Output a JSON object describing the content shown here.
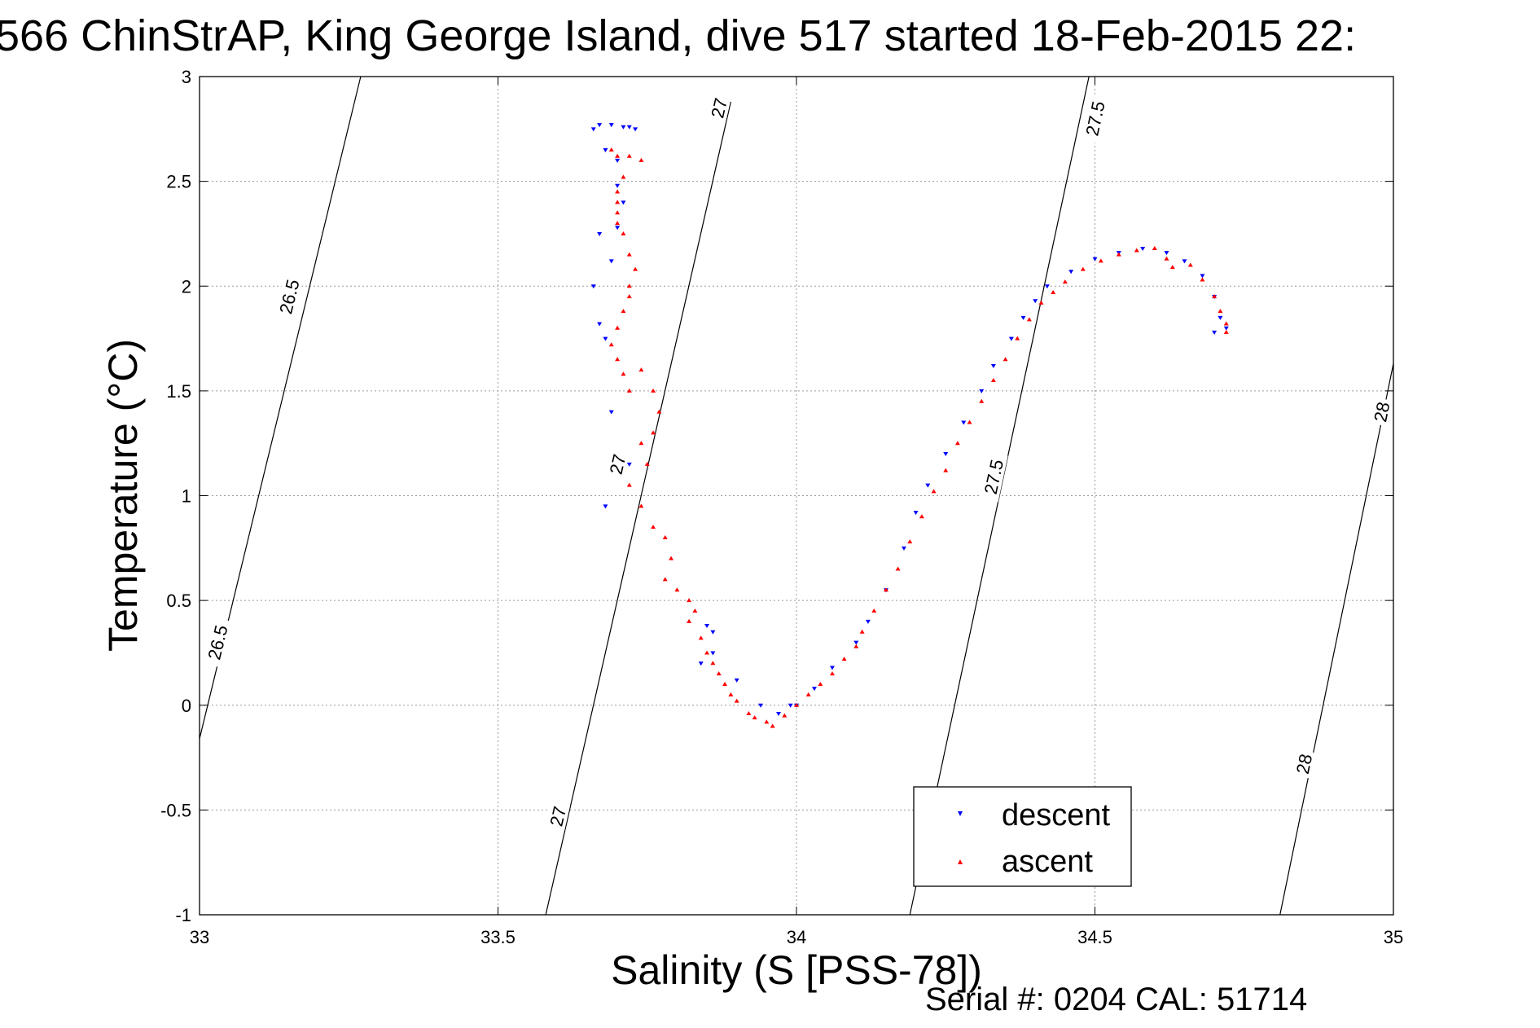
{
  "chart_data": {
    "type": "scatter",
    "title": "566 ChinStrAP, King George Island, dive 517 started 18-Feb-2015 22:",
    "xlabel": "Salinity (S [PSS-78])",
    "ylabel": "Temperature (°C)",
    "xlim": [
      33,
      35
    ],
    "ylim": [
      -1,
      3
    ],
    "x_ticks": [
      "33",
      "33.5",
      "34",
      "34.5",
      "35"
    ],
    "y_ticks": [
      "3",
      "2.5",
      "2",
      "1.5",
      "1",
      "0.5",
      "0",
      "-0.5",
      "-1"
    ],
    "grid": true,
    "legend_position": "bottom-right",
    "footer": "Serial #: 0204  CAL: 51714",
    "density_contours": [
      {
        "label": "26.5",
        "points": [
          [
            33.0,
            -0.16
          ],
          [
            33.27,
            3.0
          ]
        ]
      },
      {
        "label": "27",
        "points": [
          [
            33.58,
            -1.0
          ],
          [
            33.89,
            2.88
          ]
        ]
      },
      {
        "label": "27.5",
        "points": [
          [
            34.19,
            -1.0
          ],
          [
            34.49,
            3.0
          ]
        ]
      },
      {
        "label": "28",
        "points": [
          [
            34.81,
            -1.0
          ],
          [
            35.0,
            1.63
          ]
        ]
      }
    ],
    "contour_labels": [
      {
        "text": "26.5",
        "x": 33.15,
        "y": 1.95
      },
      {
        "text": "26.5",
        "x": 33.03,
        "y": 0.3
      },
      {
        "text": "27",
        "x": 33.87,
        "y": 2.85
      },
      {
        "text": "27",
        "x": 33.7,
        "y": 1.15
      },
      {
        "text": "27",
        "x": 33.6,
        "y": -0.53
      },
      {
        "text": "27.5",
        "x": 34.5,
        "y": 2.8
      },
      {
        "text": "27.5",
        "x": 34.33,
        "y": 1.09
      },
      {
        "text": "28",
        "x": 34.98,
        "y": 1.4
      },
      {
        "text": "28",
        "x": 34.85,
        "y": -0.28
      }
    ],
    "series": [
      {
        "name": "descent",
        "color": "#0000ff",
        "marker": "triangle-down",
        "values": [
          [
            33.66,
            2.75
          ],
          [
            33.67,
            2.77
          ],
          [
            33.69,
            2.77
          ],
          [
            33.71,
            2.76
          ],
          [
            33.72,
            2.76
          ],
          [
            33.73,
            2.75
          ],
          [
            33.68,
            2.65
          ],
          [
            33.7,
            2.6
          ],
          [
            33.7,
            2.48
          ],
          [
            33.71,
            2.4
          ],
          [
            33.7,
            2.28
          ],
          [
            33.67,
            2.25
          ],
          [
            33.69,
            2.12
          ],
          [
            33.66,
            2.0
          ],
          [
            33.67,
            1.82
          ],
          [
            33.68,
            1.75
          ],
          [
            33.69,
            1.4
          ],
          [
            33.72,
            1.15
          ],
          [
            33.68,
            0.95
          ],
          [
            33.85,
            0.38
          ],
          [
            33.86,
            0.35
          ],
          [
            33.86,
            0.25
          ],
          [
            33.84,
            0.2
          ],
          [
            33.9,
            0.12
          ],
          [
            33.94,
            0.0
          ],
          [
            33.97,
            -0.04
          ],
          [
            33.99,
            0.0
          ],
          [
            34.0,
            0.0
          ],
          [
            34.03,
            0.08
          ],
          [
            34.06,
            0.18
          ],
          [
            34.1,
            0.3
          ],
          [
            34.12,
            0.4
          ],
          [
            34.15,
            0.55
          ],
          [
            34.18,
            0.75
          ],
          [
            34.2,
            0.92
          ],
          [
            34.22,
            1.05
          ],
          [
            34.25,
            1.2
          ],
          [
            34.28,
            1.35
          ],
          [
            34.31,
            1.5
          ],
          [
            34.33,
            1.62
          ],
          [
            34.36,
            1.75
          ],
          [
            34.38,
            1.85
          ],
          [
            34.4,
            1.93
          ],
          [
            34.42,
            2.0
          ],
          [
            34.46,
            2.07
          ],
          [
            34.5,
            2.13
          ],
          [
            34.54,
            2.16
          ],
          [
            34.58,
            2.18
          ],
          [
            34.62,
            2.16
          ],
          [
            34.65,
            2.12
          ],
          [
            34.68,
            2.05
          ],
          [
            34.7,
            1.95
          ],
          [
            34.71,
            1.85
          ],
          [
            34.72,
            1.8
          ],
          [
            34.7,
            1.78
          ]
        ]
      },
      {
        "name": "ascent",
        "color": "#ff0000",
        "marker": "triangle-up",
        "values": [
          [
            33.69,
            2.65
          ],
          [
            33.7,
            2.62
          ],
          [
            33.72,
            2.62
          ],
          [
            33.74,
            2.6
          ],
          [
            33.71,
            2.52
          ],
          [
            33.7,
            2.45
          ],
          [
            33.7,
            2.4
          ],
          [
            33.7,
            2.35
          ],
          [
            33.7,
            2.3
          ],
          [
            33.71,
            2.25
          ],
          [
            33.72,
            2.15
          ],
          [
            33.73,
            2.08
          ],
          [
            33.72,
            2.0
          ],
          [
            33.72,
            1.95
          ],
          [
            33.71,
            1.88
          ],
          [
            33.7,
            1.8
          ],
          [
            33.69,
            1.72
          ],
          [
            33.7,
            1.65
          ],
          [
            33.71,
            1.58
          ],
          [
            33.72,
            1.5
          ],
          [
            33.74,
            1.6
          ],
          [
            33.76,
            1.5
          ],
          [
            33.77,
            1.4
          ],
          [
            33.76,
            1.3
          ],
          [
            33.74,
            1.25
          ],
          [
            33.75,
            1.15
          ],
          [
            33.72,
            1.05
          ],
          [
            33.74,
            0.95
          ],
          [
            33.76,
            0.85
          ],
          [
            33.78,
            0.8
          ],
          [
            33.79,
            0.7
          ],
          [
            33.78,
            0.6
          ],
          [
            33.8,
            0.55
          ],
          [
            33.82,
            0.5
          ],
          [
            33.83,
            0.45
          ],
          [
            33.82,
            0.4
          ],
          [
            33.84,
            0.32
          ],
          [
            33.85,
            0.25
          ],
          [
            33.86,
            0.2
          ],
          [
            33.87,
            0.15
          ],
          [
            33.88,
            0.1
          ],
          [
            33.89,
            0.05
          ],
          [
            33.9,
            0.02
          ],
          [
            33.92,
            -0.04
          ],
          [
            33.93,
            -0.06
          ],
          [
            33.95,
            -0.08
          ],
          [
            33.96,
            -0.1
          ],
          [
            33.98,
            -0.05
          ],
          [
            34.0,
            0.0
          ],
          [
            34.02,
            0.05
          ],
          [
            34.04,
            0.1
          ],
          [
            34.06,
            0.15
          ],
          [
            34.08,
            0.22
          ],
          [
            34.1,
            0.28
          ],
          [
            34.11,
            0.35
          ],
          [
            34.13,
            0.45
          ],
          [
            34.15,
            0.55
          ],
          [
            34.17,
            0.65
          ],
          [
            34.19,
            0.78
          ],
          [
            34.21,
            0.9
          ],
          [
            34.23,
            1.02
          ],
          [
            34.25,
            1.12
          ],
          [
            34.27,
            1.25
          ],
          [
            34.29,
            1.35
          ],
          [
            34.31,
            1.45
          ],
          [
            34.33,
            1.55
          ],
          [
            34.35,
            1.65
          ],
          [
            34.37,
            1.75
          ],
          [
            34.39,
            1.84
          ],
          [
            34.41,
            1.92
          ],
          [
            34.43,
            1.97
          ],
          [
            34.45,
            2.02
          ],
          [
            34.48,
            2.08
          ],
          [
            34.51,
            2.12
          ],
          [
            34.54,
            2.15
          ],
          [
            34.57,
            2.17
          ],
          [
            34.6,
            2.18
          ],
          [
            34.62,
            2.13
          ],
          [
            34.63,
            2.09
          ],
          [
            34.66,
            2.1
          ],
          [
            34.68,
            2.03
          ],
          [
            34.7,
            1.95
          ],
          [
            34.71,
            1.88
          ],
          [
            34.72,
            1.82
          ],
          [
            34.72,
            1.78
          ]
        ]
      }
    ]
  }
}
